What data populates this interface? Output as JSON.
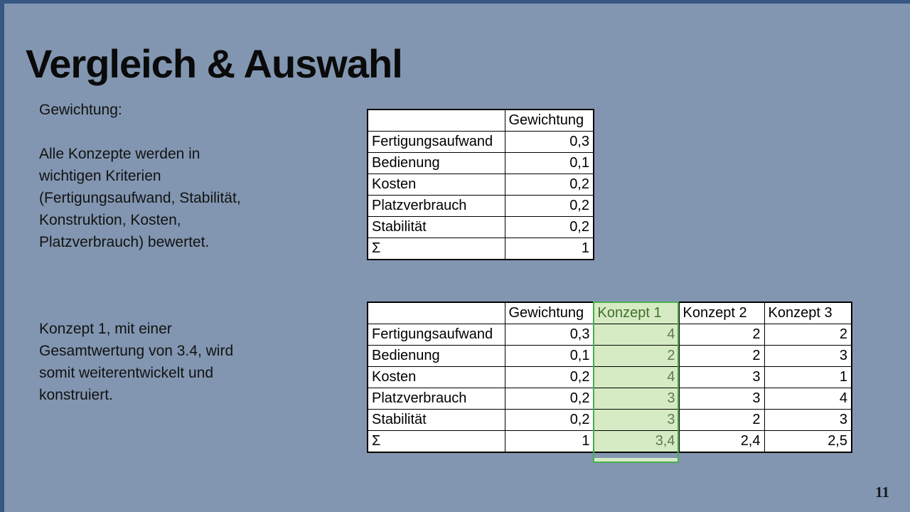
{
  "slide": {
    "title": "Vergleich & Auswahl",
    "page_number": "11",
    "colors": {
      "background": "#8296B1",
      "accent_bar": "#375683",
      "highlight_fill": "#D6EBC4",
      "highlight_border": "#4AAD50",
      "highlight_header_text": "#3F6F28",
      "highlight_value_text": "#5E7C52"
    }
  },
  "text_blocks": {
    "weighting": "Gewichtung:\n\nAlle Konzepte werden in\nwichtigen Kriterien\n(Fertigungsaufwand, Stabilität,\nKonstruktion, Kosten,\nPlatzverbrauch) bewertet.",
    "conclusion": "Konzept 1, mit einer\nGesamtwertung von 3.4, wird\nsomit weiterentwickelt und\nkonstruiert."
  },
  "chart_data": [
    {
      "type": "table",
      "name": "weight_table",
      "headers": [
        "",
        "Gewichtung"
      ],
      "rows": [
        [
          "Fertigungsaufwand",
          "0,3"
        ],
        [
          "Bedienung",
          "0,1"
        ],
        [
          "Kosten",
          "0,2"
        ],
        [
          "Platzverbrauch",
          "0,2"
        ],
        [
          "Stabilität",
          "0,2"
        ],
        [
          "Σ",
          "1"
        ]
      ]
    },
    {
      "type": "table",
      "name": "comparison_table",
      "headers": [
        "",
        "Gewichtung",
        "Konzept 1",
        "Konzept 2",
        "Konzept 3"
      ],
      "highlighted_column": "Konzept 1",
      "rows": [
        [
          "Fertigungsaufwand",
          "0,3",
          "4",
          "2",
          "2"
        ],
        [
          "Bedienung",
          "0,1",
          "2",
          "2",
          "3"
        ],
        [
          "Kosten",
          "0,2",
          "4",
          "3",
          "1"
        ],
        [
          "Platzverbrauch",
          "0,2",
          "3",
          "3",
          "4"
        ],
        [
          "Stabilität",
          "0,2",
          "3",
          "2",
          "3"
        ],
        [
          "Σ",
          "1",
          "3,4",
          "2,4",
          "2,5"
        ]
      ]
    }
  ]
}
